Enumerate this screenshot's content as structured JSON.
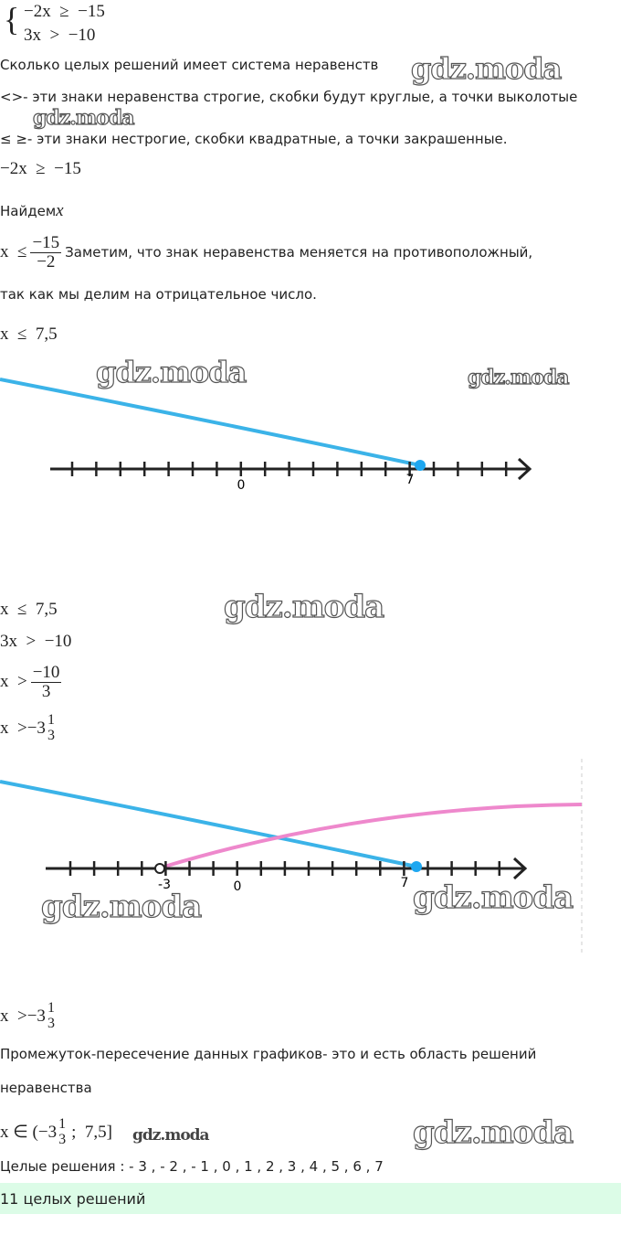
{
  "system": [
    "−2x  ≥  −15",
    "3x  >  −10"
  ],
  "question": "Сколько целых решений имеет система неравенств",
  "note_strict": "<>- эти знаки неравенства строгие, скобки будут круглые, а точки выколотые",
  "note_nonstrict": "≤ ≥- эти знаки нестрогие, скобки квадратные, а точки закрашенные.",
  "step1": "−2x  ≥  −15",
  "find": "Найдем",
  "find_var": "x",
  "frac1": {
    "left": "x  ≤",
    "num": "−15",
    "den": "−2"
  },
  "remark": [
    "Заметим, что знак неравенства меняется на противоположный,",
    "так как мы делим на отрицательное число."
  ],
  "result1": "x  ≤  7,5",
  "number_line_1": {
    "labels": [
      "0",
      "7"
    ]
  },
  "result1_again": "x  ≤  7,5",
  "step2": "3x  >  −10",
  "frac2": {
    "left": "x  >",
    "num": "−10",
    "den": "3"
  },
  "mixed1": {
    "left": "x  >",
    "whole": "−3",
    "num": "1",
    "den": "3"
  },
  "number_line_2": {
    "labels": [
      "-3",
      "0",
      "7"
    ]
  },
  "mixed2": {
    "left": "x  >",
    "whole": "−3",
    "num": "1",
    "den": "3"
  },
  "conclusion": [
    "Промежуток-пересечение данных графиков- это и есть область решений",
    "неравенства"
  ],
  "interval": {
    "left": "x ∈ (−3",
    "num": "1",
    "den": "3",
    "right": ";  7,5]"
  },
  "integers": "Целые решения : - 3 , - 2 , - 1 , 0 , 1 , 2 , 3 , 4 , 5 , 6 , 7",
  "answer": "11 целых решений",
  "watermark": "gdz.moda"
}
